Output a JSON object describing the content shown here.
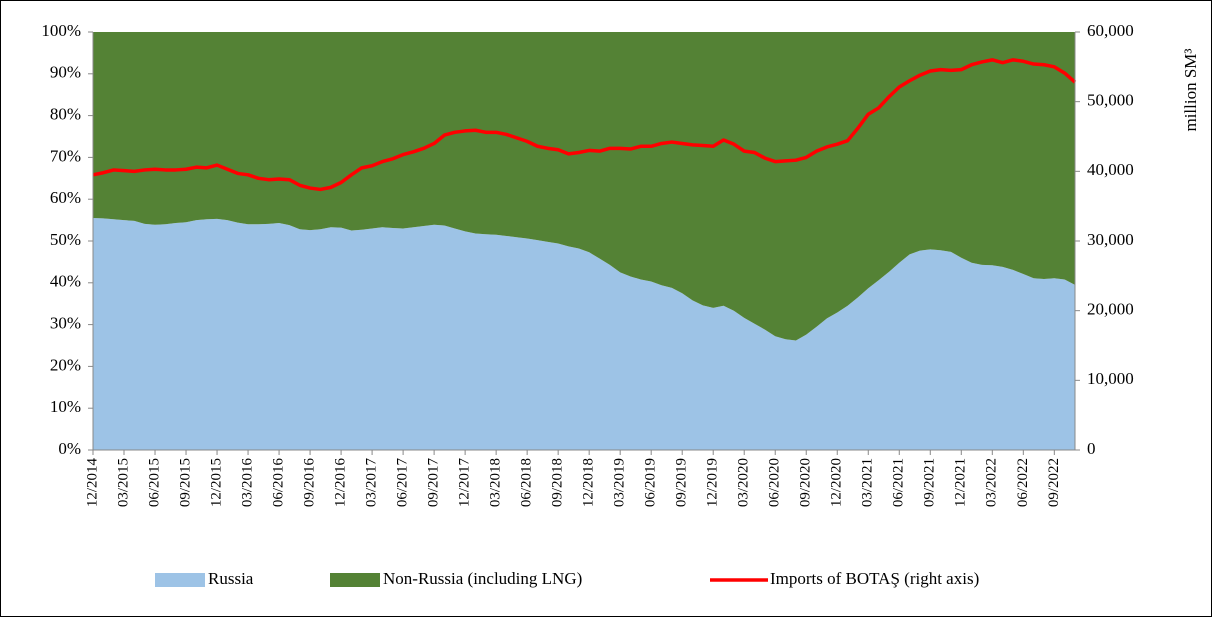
{
  "chart_data": {
    "type": "area",
    "stacked": true,
    "categories": [
      "12/2014",
      null,
      null,
      "03/2015",
      null,
      null,
      "06/2015",
      null,
      null,
      "09/2015",
      null,
      null,
      "12/2015",
      null,
      null,
      "03/2016",
      null,
      null,
      "06/2016",
      null,
      null,
      "09/2016",
      null,
      null,
      "12/2016",
      null,
      null,
      "03/2017",
      null,
      null,
      "06/2017",
      null,
      null,
      "09/2017",
      null,
      null,
      "12/2017",
      null,
      null,
      "03/2018",
      null,
      null,
      "06/2018",
      null,
      null,
      "09/2018",
      null,
      null,
      "12/2018",
      null,
      null,
      "03/2019",
      null,
      null,
      "06/2019",
      null,
      null,
      "09/2019",
      null,
      null,
      "12/2019",
      null,
      null,
      "03/2020",
      null,
      null,
      "06/2020",
      null,
      null,
      "09/2020",
      null,
      null,
      "12/2020",
      null,
      null,
      "03/2021",
      null,
      null,
      "06/2021",
      null,
      null,
      "09/2021",
      null,
      null,
      "12/2021",
      null,
      null,
      "03/2022",
      null,
      null,
      "06/2022",
      null,
      null,
      "09/2022",
      null,
      null
    ],
    "series": [
      {
        "name": "Russia",
        "color": "#9dc3e6",
        "values": [
          55.5,
          55.4,
          55.2,
          55.0,
          54.8,
          54.1,
          53.9,
          54.0,
          54.3,
          54.5,
          55.0,
          55.2,
          55.3,
          55.0,
          54.4,
          54.0,
          54.0,
          54.1,
          54.3,
          53.8,
          52.8,
          52.6,
          52.8,
          53.3,
          53.2,
          52.5,
          52.7,
          53.0,
          53.3,
          53.1,
          53.0,
          53.3,
          53.6,
          53.9,
          53.7,
          53.0,
          52.3,
          51.8,
          51.6,
          51.5,
          51.2,
          50.9,
          50.6,
          50.2,
          49.8,
          49.4,
          48.7,
          48.2,
          47.3,
          45.8,
          44.3,
          42.5,
          41.5,
          40.8,
          40.3,
          39.4,
          38.8,
          37.5,
          35.8,
          34.6,
          34.0,
          34.5,
          33.3,
          31.6,
          30.2,
          28.8,
          27.2,
          26.5,
          26.2,
          27.6,
          29.5,
          31.5,
          32.9,
          34.5,
          36.5,
          38.7,
          40.6,
          42.6,
          44.8,
          46.8,
          47.7,
          48.0,
          47.8,
          47.4,
          46.0,
          44.8,
          44.3,
          44.2,
          43.8,
          43.1,
          42.1,
          41.1,
          40.9,
          41.1,
          40.8,
          39.5
        ]
      },
      {
        "name": "Non-Russia (including LNG)",
        "color": "#548235",
        "values": [
          44.5,
          44.6,
          44.8,
          45.0,
          45.2,
          45.9,
          46.1,
          46.0,
          45.7,
          45.5,
          45.0,
          44.8,
          44.7,
          45.0,
          45.6,
          46.0,
          46.0,
          45.9,
          45.7,
          46.2,
          47.2,
          47.4,
          47.2,
          46.7,
          46.8,
          47.5,
          47.3,
          47.0,
          46.7,
          46.9,
          47.0,
          46.7,
          46.4,
          46.1,
          46.3,
          47.0,
          47.7,
          48.2,
          48.4,
          48.5,
          48.8,
          49.1,
          49.4,
          49.8,
          50.2,
          50.6,
          51.3,
          51.8,
          52.7,
          54.2,
          55.7,
          57.5,
          58.5,
          59.2,
          59.7,
          60.6,
          61.2,
          62.5,
          64.2,
          65.4,
          66.0,
          65.5,
          66.7,
          68.4,
          69.8,
          71.2,
          72.8,
          73.5,
          73.8,
          72.4,
          70.5,
          68.5,
          67.1,
          65.5,
          63.5,
          61.3,
          59.4,
          57.4,
          55.2,
          53.2,
          52.3,
          52.0,
          52.2,
          52.6,
          54.0,
          55.2,
          55.7,
          55.8,
          56.2,
          56.9,
          57.9,
          58.9,
          59.1,
          58.9,
          59.2,
          60.5
        ]
      },
      {
        "name": "Imports of BOTAŞ (right axis)",
        "color": "#ff0000",
        "type": "line",
        "axis": "y2",
        "values": [
          39500,
          39800,
          40200,
          40100,
          40000,
          40200,
          40300,
          40200,
          40200,
          40300,
          40600,
          40500,
          40900,
          40300,
          39700,
          39500,
          39000,
          38800,
          38900,
          38800,
          38000,
          37600,
          37400,
          37700,
          38400,
          39500,
          40500,
          40800,
          41400,
          41800,
          42400,
          42800,
          43300,
          44000,
          45200,
          45600,
          45800,
          45900,
          45600,
          45600,
          45300,
          44800,
          44300,
          43600,
          43300,
          43100,
          42500,
          42700,
          43000,
          42900,
          43300,
          43300,
          43200,
          43600,
          43600,
          44000,
          44200,
          44000,
          43800,
          43700,
          43600,
          44500,
          43900,
          42900,
          42700,
          41900,
          41400,
          41500,
          41600,
          42000,
          42900,
          43500,
          43900,
          44400,
          46200,
          48200,
          49100,
          50700,
          52100,
          53000,
          53800,
          54400,
          54600,
          54500,
          54600,
          55300,
          55700,
          56000,
          55600,
          56000,
          55800,
          55400,
          55300,
          55000,
          54100,
          52800
        ]
      }
    ],
    "ylim": [
      0,
      100
    ],
    "yticks": [
      {
        "value": 0,
        "label": "0%"
      },
      {
        "value": 10,
        "label": "10%"
      },
      {
        "value": 20,
        "label": "20%"
      },
      {
        "value": 30,
        "label": "30%"
      },
      {
        "value": 40,
        "label": "40%"
      },
      {
        "value": 50,
        "label": "50%"
      },
      {
        "value": 60,
        "label": "60%"
      },
      {
        "value": 70,
        "label": "70%"
      },
      {
        "value": 80,
        "label": "80%"
      },
      {
        "value": 90,
        "label": "90%"
      },
      {
        "value": 100,
        "label": "100%"
      }
    ],
    "y2lim": [
      0,
      60000
    ],
    "y2ticks": [
      0,
      {
        "value": 10000,
        "label": "10,000"
      },
      {
        "value": 20000,
        "label": "20,000"
      },
      {
        "value": 30000,
        "label": "30,000"
      },
      {
        "value": 40000,
        "label": "40,000"
      },
      {
        "value": 50000,
        "label": "50,000"
      },
      {
        "value": 60000,
        "label": "60,000"
      }
    ],
    "y2_label": "million SM³",
    "legend": "bottom"
  }
}
